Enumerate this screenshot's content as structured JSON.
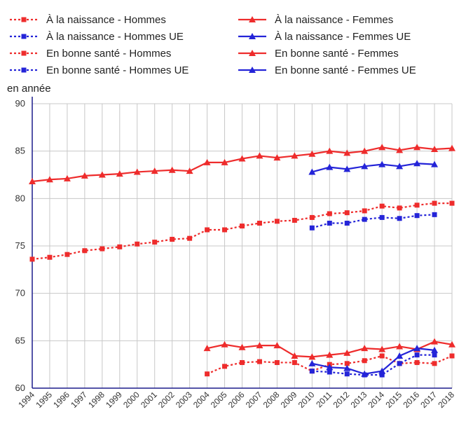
{
  "chart_data": {
    "type": "line",
    "ylabel": "en année",
    "ylim": [
      60,
      90
    ],
    "yticks": [
      60,
      65,
      70,
      75,
      80,
      85,
      90
    ],
    "grid": true,
    "legend_position": "top",
    "categories": [
      "1994",
      "1995",
      "1996",
      "1997",
      "1998",
      "1999",
      "2000",
      "2001",
      "2002",
      "2003",
      "2004",
      "2005",
      "2006",
      "2007",
      "2008",
      "2009",
      "2010",
      "2011",
      "2012",
      "2013",
      "2014",
      "2015",
      "2016",
      "2017",
      "2018"
    ],
    "series": [
      {
        "name": "À la naissance - Hommes",
        "color": "#ee2c2c",
        "style": "dotted",
        "marker": "square",
        "values": [
          73.6,
          73.8,
          74.1,
          74.5,
          74.7,
          74.9,
          75.2,
          75.4,
          75.7,
          75.8,
          76.7,
          76.7,
          77.1,
          77.4,
          77.6,
          77.7,
          78.0,
          78.4,
          78.5,
          78.7,
          79.2,
          79.0,
          79.3,
          79.5,
          79.5
        ]
      },
      {
        "name": "À la naissance - Hommes UE",
        "color": "#2424d8",
        "style": "dotted",
        "marker": "square",
        "values": [
          null,
          null,
          null,
          null,
          null,
          null,
          null,
          null,
          null,
          null,
          null,
          null,
          null,
          null,
          null,
          null,
          76.9,
          77.4,
          77.4,
          77.8,
          78.0,
          77.9,
          78.2,
          78.3,
          null
        ]
      },
      {
        "name": "En bonne santé - Hommes",
        "color": "#ee2c2c",
        "style": "dotted",
        "marker": "square",
        "values": [
          null,
          null,
          null,
          null,
          null,
          null,
          null,
          null,
          null,
          null,
          61.5,
          62.3,
          62.7,
          62.8,
          62.7,
          62.7,
          61.8,
          62.5,
          62.6,
          62.9,
          63.4,
          62.6,
          62.7,
          62.6,
          63.4
        ]
      },
      {
        "name": "En bonne santé - Hommes UE",
        "color": "#2424d8",
        "style": "dotted",
        "marker": "square",
        "values": [
          null,
          null,
          null,
          null,
          null,
          null,
          null,
          null,
          null,
          null,
          null,
          null,
          null,
          null,
          null,
          null,
          61.8,
          61.7,
          61.5,
          61.4,
          61.4,
          62.6,
          63.5,
          63.5,
          null
        ]
      },
      {
        "name": "À la naissance - Femmes",
        "color": "#ee2c2c",
        "style": "solid",
        "marker": "triangle",
        "values": [
          81.8,
          82.0,
          82.1,
          82.4,
          82.5,
          82.6,
          82.8,
          82.9,
          83.0,
          82.9,
          83.8,
          83.8,
          84.2,
          84.5,
          84.3,
          84.5,
          84.7,
          85.0,
          84.8,
          85.0,
          85.4,
          85.1,
          85.4,
          85.2,
          85.3
        ]
      },
      {
        "name": "À la naissance - Femmes UE",
        "color": "#2424d8",
        "style": "solid",
        "marker": "triangle",
        "values": [
          null,
          null,
          null,
          null,
          null,
          null,
          null,
          null,
          null,
          null,
          null,
          null,
          null,
          null,
          null,
          null,
          82.8,
          83.3,
          83.1,
          83.4,
          83.6,
          83.4,
          83.7,
          83.6,
          null
        ]
      },
      {
        "name": "En bonne santé - Femmes",
        "color": "#ee2c2c",
        "style": "solid",
        "marker": "triangle",
        "values": [
          null,
          null,
          null,
          null,
          null,
          null,
          null,
          null,
          null,
          null,
          64.2,
          64.6,
          64.3,
          64.5,
          64.5,
          63.4,
          63.3,
          63.5,
          63.7,
          64.2,
          64.1,
          64.4,
          64.1,
          64.9,
          64.6
        ]
      },
      {
        "name": "En bonne santé - Femmes UE",
        "color": "#2424d8",
        "style": "solid",
        "marker": "triangle",
        "values": [
          null,
          null,
          null,
          null,
          null,
          null,
          null,
          null,
          null,
          null,
          null,
          null,
          null,
          null,
          null,
          null,
          62.6,
          62.2,
          62.1,
          61.5,
          61.8,
          63.4,
          64.2,
          64.0,
          null
        ]
      }
    ]
  }
}
